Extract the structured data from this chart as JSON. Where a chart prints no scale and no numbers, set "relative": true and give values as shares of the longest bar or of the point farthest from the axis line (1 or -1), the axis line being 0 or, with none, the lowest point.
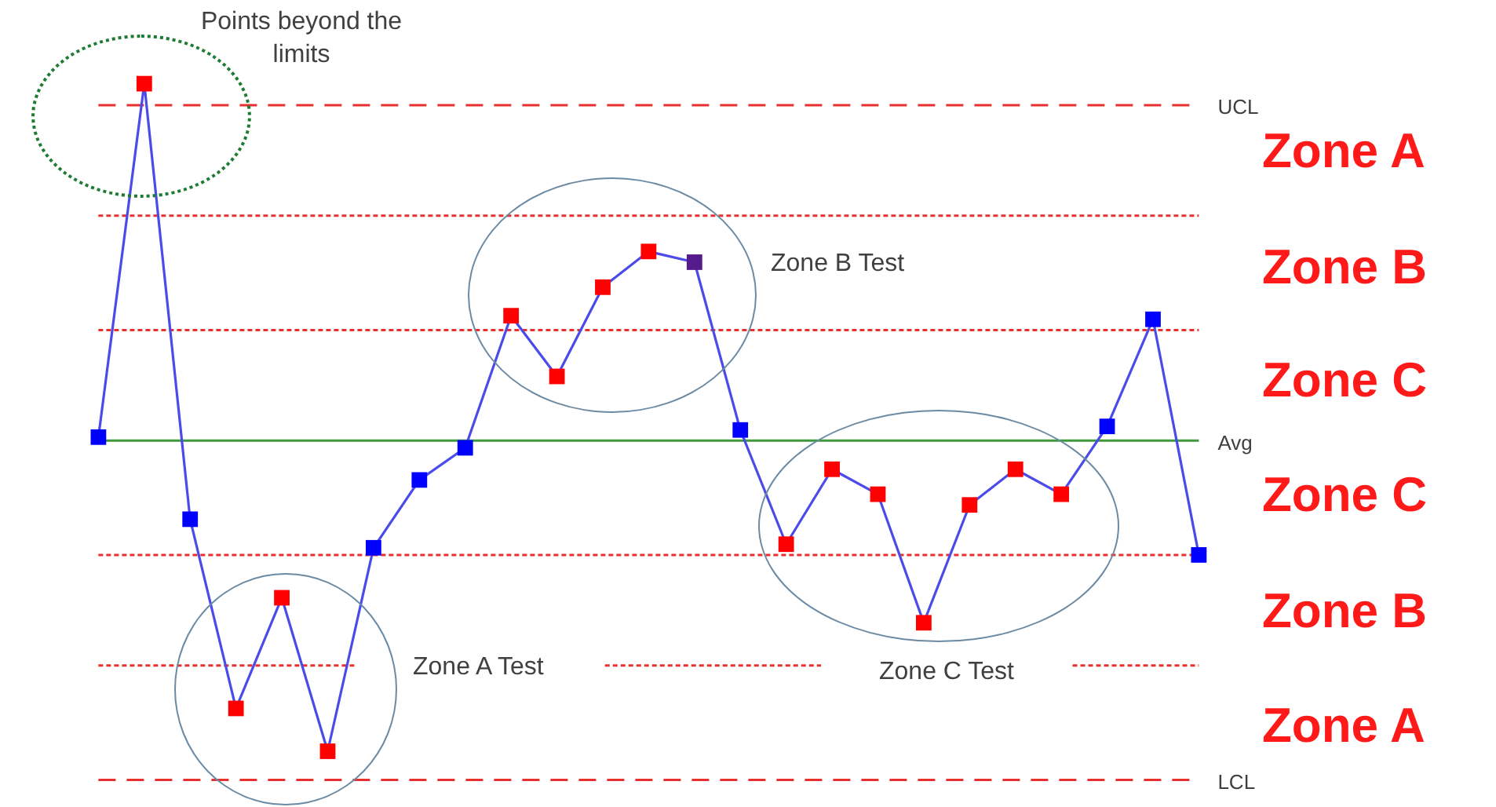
{
  "chart_data": {
    "type": "line",
    "relative": true,
    "marker": "square",
    "line_style": "solid",
    "categories": [
      null,
      null,
      null,
      null,
      null,
      null,
      null,
      null,
      null,
      null,
      null,
      null,
      null,
      null,
      null,
      null,
      null,
      null,
      null,
      null,
      null,
      null,
      null,
      null,
      null
    ],
    "series": [
      {
        "color": "#4b4bea",
        "colors": [
          "#0000ff",
          "#ff0000",
          "#0000ff",
          "#ff0000",
          "#ff0000",
          "#ff0000",
          "#0000ff",
          "#0000ff",
          "#0000ff",
          "#ff0000",
          "#ff0000",
          "#ff0000",
          "#ff0000",
          "#551a8b",
          "#0000ff",
          "#ff0000",
          "#ff0000",
          "#ff0000",
          "#ff0000",
          "#ff0000",
          "#ff0000",
          "#ff0000",
          "#0000ff",
          "#0000ff",
          "#0000ff"
        ],
        "values": [
          0.01,
          1,
          -0.22,
          -0.75,
          -0.44,
          -0.87,
          -0.3,
          -0.11,
          -0.02,
          0.35,
          0.18,
          0.43,
          0.53,
          0.5,
          0.03,
          -0.29,
          -0.08,
          -0.15,
          -0.51,
          -0.18,
          -0.08,
          -0.15,
          0.04,
          0.34,
          -0.32
        ]
      }
    ],
    "ref_lines": [
      {
        "axis": "y",
        "value": 0.94,
        "label": "UCL",
        "color": "#e8312f",
        "line_style": "dashed"
      },
      {
        "axis": "y",
        "value": 0.63,
        "color": "#e8312f",
        "line_style": "dotted"
      },
      {
        "axis": "y",
        "value": 0.31,
        "color": "#e8312f",
        "line_style": "dotted"
      },
      {
        "axis": "y",
        "value": 0,
        "label": "Avg",
        "color": "#3c9a3c",
        "line_style": "solid"
      },
      {
        "axis": "y",
        "value": -0.32,
        "color": "#e8312f",
        "line_style": "dotted"
      },
      {
        "axis": "y",
        "value": -0.63,
        "color": "#e8312f",
        "line_style": "dotted"
      },
      {
        "axis": "y",
        "value": -0.95,
        "label": "LCL",
        "color": "#e8312f",
        "line_style": "dashed"
      }
    ],
    "annotations": [
      "Points beyond the limits",
      "Zone B Test",
      "Zone A Test",
      "Zone C Test",
      "Zone A",
      "Zone B",
      "Zone C",
      "Zone C",
      "Zone B",
      "Zone A"
    ]
  }
}
